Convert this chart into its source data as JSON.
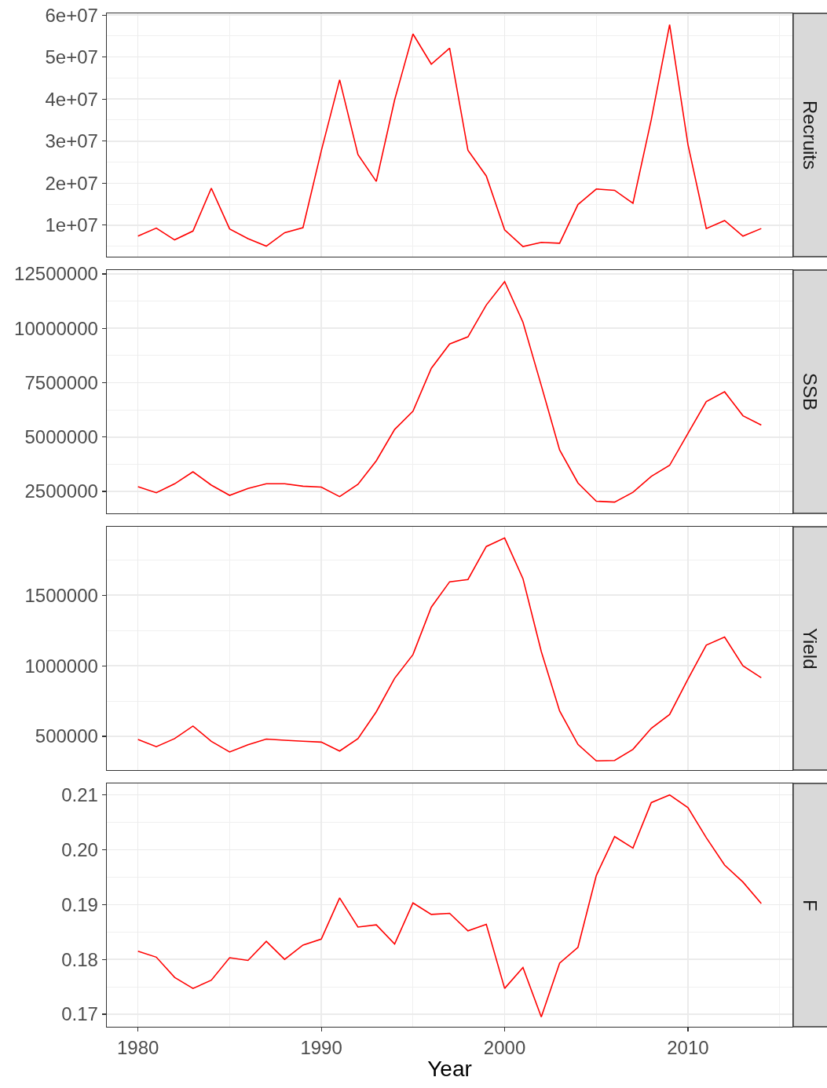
{
  "chart_data": [
    {
      "type": "line",
      "title": "Recruits",
      "x": [
        1980,
        1981,
        1982,
        1983,
        1984,
        1985,
        1986,
        1987,
        1988,
        1989,
        1990,
        1991,
        1992,
        1993,
        1994,
        1995,
        1996,
        1997,
        1998,
        1999,
        2000,
        2001,
        2002,
        2003,
        2004,
        2005,
        2006,
        2007,
        2008,
        2009,
        2010,
        2011,
        2012,
        2013,
        2014
      ],
      "values": [
        7400000,
        9300000,
        6500000,
        8600000,
        18800000,
        9100000,
        6800000,
        5000000,
        8200000,
        9400000,
        27700000,
        44600000,
        26800000,
        20400000,
        39800000,
        55500000,
        48300000,
        52100000,
        27800000,
        21700000,
        8900000,
        4900000,
        5900000,
        5700000,
        14900000,
        18600000,
        18300000,
        15200000,
        35100000,
        57700000,
        29200000,
        9200000,
        11100000,
        7400000,
        9200000
      ],
      "color": "#ff0000",
      "xlim": [
        1978.3,
        2015.7
      ],
      "xticks": [
        1980,
        1990,
        2000,
        2010
      ],
      "ylim": [
        2500000,
        60400000
      ],
      "yticks": [
        {
          "value": 10000000,
          "label": "1e+07"
        },
        {
          "value": 20000000,
          "label": "2e+07"
        },
        {
          "value": 30000000,
          "label": "3e+07"
        },
        {
          "value": 40000000,
          "label": "4e+07"
        },
        {
          "value": 50000000,
          "label": "5e+07"
        },
        {
          "value": 60000000,
          "label": "6e+07"
        }
      ],
      "grid": true,
      "tick_labels": "y"
    },
    {
      "type": "line",
      "title": "SSB",
      "x": [
        1980,
        1981,
        1982,
        1983,
        1984,
        1985,
        1986,
        1987,
        1988,
        1989,
        1990,
        1991,
        1992,
        1993,
        1994,
        1995,
        1996,
        1997,
        1998,
        1999,
        2000,
        2001,
        2002,
        2003,
        2004,
        2005,
        2006,
        2007,
        2008,
        2009,
        2010,
        2011,
        2012,
        2013,
        2014
      ],
      "values": [
        2720000,
        2440000,
        2850000,
        3400000,
        2790000,
        2320000,
        2640000,
        2850000,
        2850000,
        2740000,
        2700000,
        2260000,
        2830000,
        3910000,
        5350000,
        6190000,
        8160000,
        9280000,
        9610000,
        11070000,
        12150000,
        10280000,
        7370000,
        4410000,
        2890000,
        2050000,
        2010000,
        2460000,
        3190000,
        3700000,
        5170000,
        6630000,
        7080000,
        5980000,
        5550000
      ],
      "color": "#ff0000",
      "xlim": [
        1978.3,
        2015.7
      ],
      "xticks": [
        1980,
        1990,
        2000,
        2010
      ],
      "ylim": [
        1490000,
        12680000
      ],
      "yticks": [
        2500000,
        5000000,
        7500000,
        10000000,
        12500000
      ],
      "grid": true,
      "tick_labels": "y"
    },
    {
      "type": "line",
      "title": "Yield",
      "x": [
        1980,
        1981,
        1982,
        1983,
        1984,
        1985,
        1986,
        1987,
        1988,
        1989,
        1990,
        1991,
        1992,
        1993,
        1994,
        1995,
        1996,
        1997,
        1998,
        1999,
        2000,
        2001,
        2002,
        2003,
        2004,
        2005,
        2006,
        2007,
        2008,
        2009,
        2010,
        2011,
        2012,
        2013,
        2014
      ],
      "values": [
        478000,
        427000,
        484000,
        573000,
        465000,
        389000,
        440000,
        481000,
        472000,
        465000,
        459000,
        396000,
        484000,
        674000,
        911000,
        1079000,
        1415000,
        1595000,
        1611000,
        1845000,
        1905000,
        1617000,
        1101000,
        680000,
        443000,
        326000,
        329000,
        408000,
        557000,
        655000,
        905000,
        1146000,
        1203000,
        1000000,
        915000
      ],
      "color": "#ff0000",
      "xlim": [
        1978.3,
        2015.7
      ],
      "xticks": [
        1980,
        1990,
        2000,
        2010
      ],
      "ylim": [
        261000,
        1985000
      ],
      "yticks": [
        500000,
        1000000,
        1500000
      ],
      "grid": true,
      "tick_labels": "y"
    },
    {
      "type": "line",
      "title": "F",
      "xlabel": "Year",
      "x": [
        1980,
        1981,
        1982,
        1983,
        1984,
        1985,
        1986,
        1987,
        1988,
        1989,
        1990,
        1991,
        1992,
        1993,
        1994,
        1995,
        1996,
        1997,
        1998,
        1999,
        2000,
        2001,
        2002,
        2003,
        2004,
        2005,
        2006,
        2007,
        2008,
        2009,
        2010,
        2011,
        2012,
        2013,
        2014
      ],
      "values": [
        0.1815,
        0.1804,
        0.1767,
        0.1747,
        0.1762,
        0.1803,
        0.1798,
        0.1833,
        0.18,
        0.1826,
        0.1837,
        0.1912,
        0.1859,
        0.1863,
        0.1828,
        0.1903,
        0.1882,
        0.1884,
        0.1852,
        0.1864,
        0.1747,
        0.1785,
        0.1695,
        0.1793,
        0.1822,
        0.1953,
        0.2024,
        0.2003,
        0.2086,
        0.21,
        0.2077,
        0.2022,
        0.1972,
        0.1941,
        0.1902
      ],
      "color": "#ff0000",
      "xlim": [
        1978.3,
        2015.7
      ],
      "xticks": [
        1980,
        1990,
        2000,
        2010
      ],
      "ylim": [
        0.1677,
        0.2121
      ],
      "yticks": [
        0.17,
        0.18,
        0.19,
        {
          "value": 0.2,
          "label": "0.20"
        },
        0.21
      ],
      "grid": true
    }
  ]
}
